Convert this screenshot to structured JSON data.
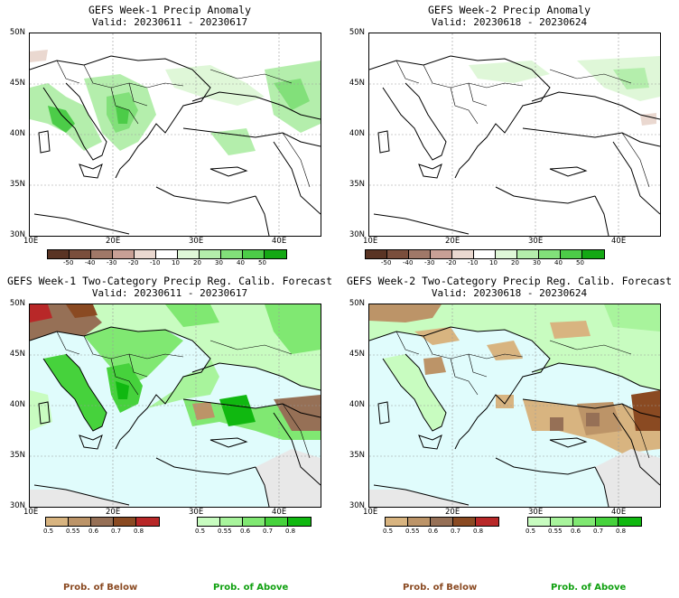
{
  "panels": [
    {
      "title": "GEFS Week-1 Precip Anomaly",
      "valid": "Valid: 20230611 - 20230617"
    },
    {
      "title": "GEFS Week-2 Precip Anomaly",
      "valid": "Valid: 20230618 - 20230624"
    },
    {
      "title": "GEFS Week-1 Two-Category Precip Reg. Calib. Forecast",
      "valid": "Valid: 20230611 - 20230617"
    },
    {
      "title": "GEFS Week-2 Two-Category Precip Reg. Calib. Forecast",
      "valid": "Valid: 20230618 - 20230624"
    }
  ],
  "axes": {
    "lat_labels": [
      "50N",
      "45N",
      "40N",
      "35N",
      "30N"
    ],
    "lon_labels": [
      "10E",
      "20E",
      "30E",
      "40E"
    ]
  },
  "anomaly_scale": {
    "ticks": [
      "-50",
      "-40",
      "-30",
      "-20",
      "-10",
      "10",
      "20",
      "30",
      "40",
      "50"
    ],
    "colors": [
      "#5a3424",
      "#7a4e3c",
      "#a07868",
      "#c8a096",
      "#ead8d0",
      "#ffffff",
      "#dff7d8",
      "#b4eeac",
      "#82e07a",
      "#4ccc48",
      "#14a814"
    ]
  },
  "prob_scale": {
    "ticks": [
      "0.5",
      "0.55",
      "0.6",
      "0.7",
      "0.8"
    ],
    "below_colors": [
      "#d8b480",
      "#bc9468",
      "#967056",
      "#8a4a22",
      "#b82828"
    ],
    "above_colors": [
      "#c8fcc0",
      "#a8f49c",
      "#80e872",
      "#46d23c",
      "#10b810"
    ]
  },
  "labels": {
    "below": "Prob. of Below",
    "above": "Prob. of Above"
  },
  "colors": {
    "below_label": "#8a4a22",
    "above_label": "#10a010",
    "sea": "#e0fcfc",
    "land_neutral": "#e8e8e8"
  }
}
